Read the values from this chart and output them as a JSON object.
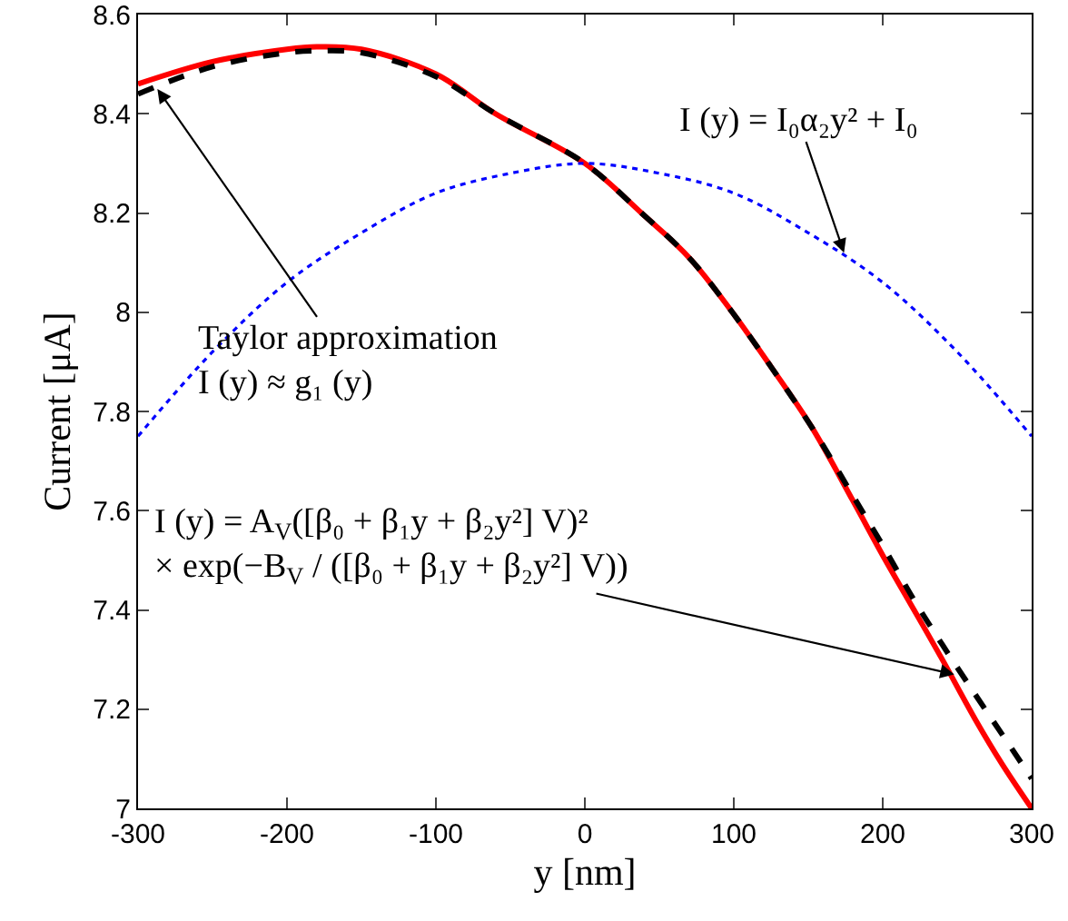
{
  "chart_data": {
    "type": "line",
    "xlabel": "y [nm]",
    "ylabel": "Current [μA]",
    "xlim": [
      -300,
      300
    ],
    "xticks": [
      -300,
      -200,
      -100,
      0,
      100,
      200,
      300
    ],
    "ylim": [
      7,
      8.6
    ],
    "yticks": [
      7,
      7.2,
      7.4,
      7.6,
      7.8,
      8,
      8.2,
      8.4,
      8.6
    ],
    "grid": false,
    "marker": "none",
    "x": [
      -300,
      -250,
      -200,
      -180,
      -150,
      -100,
      -60,
      0,
      38,
      70,
      99,
      125,
      152,
      180,
      200,
      221,
      240,
      262,
      280,
      300
    ],
    "series": [
      {
        "color": "#ff0000",
        "line_style": "solid",
        "values": [
          8.46,
          8.505,
          8.53,
          8.535,
          8.53,
          8.48,
          8.4,
          8.3,
          8.2,
          8.11,
          8.0,
          7.89,
          7.77,
          7.62,
          7.51,
          7.4,
          7.3,
          7.18,
          7.09,
          7.0
        ]
      },
      {
        "color": "#000000",
        "line_style": "dashed",
        "values": [
          8.44,
          8.495,
          8.523,
          8.527,
          8.523,
          8.475,
          8.4,
          8.3,
          8.2,
          8.11,
          8.0,
          7.89,
          7.77,
          7.63,
          7.53,
          7.42,
          7.33,
          7.23,
          7.15,
          7.06
        ]
      },
      {
        "color": "#0000ff",
        "line_style": "dotted",
        "x": [
          -300,
          -250,
          -200,
          -150,
          -100,
          -50,
          0,
          50,
          100,
          150,
          200,
          250,
          300
        ],
        "values": [
          7.75,
          7.92,
          8.06,
          8.16,
          8.24,
          8.28,
          8.3,
          8.28,
          8.24,
          8.16,
          8.06,
          7.92,
          7.75
        ]
      }
    ],
    "annotations": [
      {
        "text": "I (y) = I₀α₂y² + I₀",
        "x": 174,
        "y": 8.12
      },
      {
        "text": "Taylor approximation\nI (y) ≈ g₁ (y)",
        "x": -287,
        "y": 8.45
      },
      {
        "text": "I (y) = A$_{V}$([β₀ + β₁y + β₂y²] V)²\n× exp(−B$_{V}$ / ([β₀ + β₁y + β₂y²] V))",
        "x": 248,
        "y": 7.27
      }
    ]
  }
}
